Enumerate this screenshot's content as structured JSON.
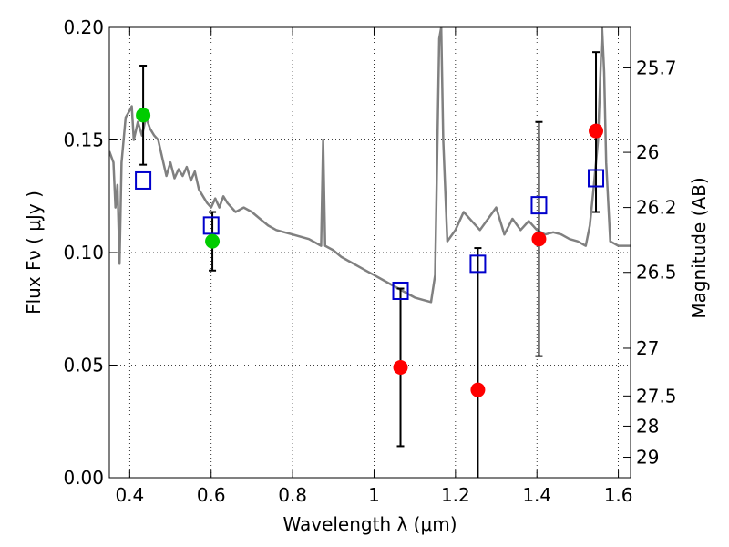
{
  "chart_data": {
    "type": "scatter",
    "xlabel": "Wavelength  λ (μm)",
    "ylabel": "Flux  Fν  ( μJy )",
    "y2label": "Magnitude (AB)",
    "xlim": [
      0.35,
      1.63
    ],
    "ylim": [
      0.0,
      0.2
    ],
    "grid": true,
    "x_ticks": [
      0.4,
      0.6,
      0.8,
      1.0,
      1.2,
      1.4,
      1.6
    ],
    "x_tick_labels": [
      "0.4",
      "0.6",
      "0.8",
      "1",
      "1.2",
      "1.4",
      "1.6"
    ],
    "y_ticks": [
      0.0,
      0.05,
      0.1,
      0.15,
      0.2
    ],
    "y_tick_labels": [
      "0.00",
      "0.05",
      "0.10",
      "0.15",
      "0.20"
    ],
    "y2_ticks": [
      {
        "flux": 0.182,
        "label": "25.7"
      },
      {
        "flux": 0.1445,
        "label": "26"
      },
      {
        "flux": 0.12,
        "label": "26.2"
      },
      {
        "flux": 0.0912,
        "label": "26.5"
      },
      {
        "flux": 0.0575,
        "label": "27"
      },
      {
        "flux": 0.0363,
        "label": "27.5"
      },
      {
        "flux": 0.0229,
        "label": "28"
      },
      {
        "flux": 0.0091,
        "label": "29"
      }
    ],
    "series": [
      {
        "kind": "line",
        "color": "#808080",
        "points": [
          [
            0.35,
            0.145
          ],
          [
            0.36,
            0.14
          ],
          [
            0.365,
            0.12
          ],
          [
            0.37,
            0.13
          ],
          [
            0.375,
            0.095
          ],
          [
            0.38,
            0.14
          ],
          [
            0.39,
            0.16
          ],
          [
            0.4,
            0.163
          ],
          [
            0.405,
            0.165
          ],
          [
            0.41,
            0.15
          ],
          [
            0.42,
            0.158
          ],
          [
            0.43,
            0.152
          ],
          [
            0.44,
            0.16
          ],
          [
            0.45,
            0.155
          ],
          [
            0.46,
            0.152
          ],
          [
            0.47,
            0.15
          ],
          [
            0.48,
            0.142
          ],
          [
            0.49,
            0.134
          ],
          [
            0.5,
            0.14
          ],
          [
            0.51,
            0.133
          ],
          [
            0.52,
            0.137
          ],
          [
            0.53,
            0.134
          ],
          [
            0.54,
            0.138
          ],
          [
            0.55,
            0.132
          ],
          [
            0.56,
            0.136
          ],
          [
            0.57,
            0.128
          ],
          [
            0.58,
            0.125
          ],
          [
            0.59,
            0.122
          ],
          [
            0.6,
            0.12
          ],
          [
            0.61,
            0.124
          ],
          [
            0.62,
            0.12
          ],
          [
            0.63,
            0.125
          ],
          [
            0.64,
            0.122
          ],
          [
            0.65,
            0.12
          ],
          [
            0.66,
            0.118
          ],
          [
            0.68,
            0.12
          ],
          [
            0.7,
            0.118
          ],
          [
            0.72,
            0.115
          ],
          [
            0.74,
            0.112
          ],
          [
            0.76,
            0.11
          ],
          [
            0.78,
            0.109
          ],
          [
            0.8,
            0.108
          ],
          [
            0.82,
            0.107
          ],
          [
            0.84,
            0.106
          ],
          [
            0.86,
            0.104
          ],
          [
            0.87,
            0.103
          ],
          [
            0.875,
            0.15
          ],
          [
            0.88,
            0.103
          ],
          [
            0.9,
            0.101
          ],
          [
            0.92,
            0.098
          ],
          [
            0.94,
            0.096
          ],
          [
            0.96,
            0.094
          ],
          [
            0.98,
            0.092
          ],
          [
            1.0,
            0.09
          ],
          [
            1.02,
            0.088
          ],
          [
            1.04,
            0.086
          ],
          [
            1.06,
            0.084
          ],
          [
            1.08,
            0.082
          ],
          [
            1.1,
            0.08
          ],
          [
            1.12,
            0.079
          ],
          [
            1.14,
            0.078
          ],
          [
            1.15,
            0.09
          ],
          [
            1.16,
            0.195
          ],
          [
            1.165,
            0.2
          ],
          [
            1.17,
            0.15
          ],
          [
            1.18,
            0.105
          ],
          [
            1.2,
            0.11
          ],
          [
            1.22,
            0.118
          ],
          [
            1.24,
            0.114
          ],
          [
            1.26,
            0.11
          ],
          [
            1.28,
            0.115
          ],
          [
            1.3,
            0.12
          ],
          [
            1.32,
            0.108
          ],
          [
            1.34,
            0.115
          ],
          [
            1.36,
            0.11
          ],
          [
            1.38,
            0.114
          ],
          [
            1.4,
            0.11
          ],
          [
            1.42,
            0.108
          ],
          [
            1.44,
            0.109
          ],
          [
            1.46,
            0.108
          ],
          [
            1.48,
            0.106
          ],
          [
            1.5,
            0.105
          ],
          [
            1.52,
            0.103
          ],
          [
            1.53,
            0.112
          ],
          [
            1.54,
            0.13
          ],
          [
            1.55,
            0.15
          ],
          [
            1.56,
            0.2
          ],
          [
            1.565,
            0.18
          ],
          [
            1.57,
            0.14
          ],
          [
            1.58,
            0.105
          ],
          [
            1.6,
            0.103
          ],
          [
            1.63,
            0.103
          ]
        ]
      },
      {
        "kind": "markers",
        "marker": "open-square",
        "color": "#0000cc",
        "points": [
          [
            0.433,
            0.132
          ],
          [
            0.6,
            0.112
          ],
          [
            1.065,
            0.083
          ],
          [
            1.255,
            0.095
          ],
          [
            1.405,
            0.121
          ],
          [
            1.545,
            0.133
          ]
        ]
      },
      {
        "kind": "markers",
        "marker": "filled-circle",
        "color": "#00cc00",
        "points": [
          [
            0.433,
            0.161
          ],
          [
            0.603,
            0.105
          ]
        ]
      },
      {
        "kind": "markers",
        "marker": "filled-circle",
        "color": "#ff0000",
        "points": [
          [
            1.065,
            0.049
          ],
          [
            1.255,
            0.039
          ],
          [
            1.405,
            0.106
          ],
          [
            1.545,
            0.154
          ]
        ]
      },
      {
        "kind": "errorbars",
        "color": "#000000",
        "points": [
          {
            "x": 0.433,
            "y": 0.161,
            "low": 0.139,
            "high": 0.183
          },
          {
            "x": 0.603,
            "y": 0.105,
            "low": 0.092,
            "high": 0.118
          },
          {
            "x": 1.065,
            "y": 0.049,
            "low": 0.014,
            "high": 0.084
          },
          {
            "x": 1.255,
            "y": 0.039,
            "low": 0.0,
            "high": 0.102
          },
          {
            "x": 1.405,
            "y": 0.106,
            "low": 0.054,
            "high": 0.158
          },
          {
            "x": 1.545,
            "y": 0.154,
            "low": 0.118,
            "high": 0.189
          }
        ]
      }
    ]
  }
}
